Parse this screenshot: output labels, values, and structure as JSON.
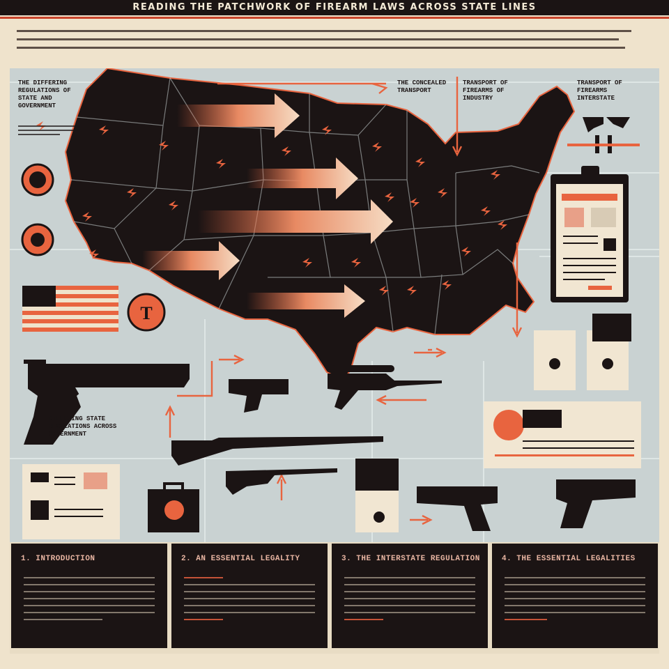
{
  "header": {
    "title": "READING THE PATCHWORK OF FIREARM LAWS ACROSS STATE LINES"
  },
  "labels": {
    "top_left": "THE DIFFERING REGULATIONS OF STATE AND GOVERNMENT",
    "top_center": "THE CONCEALED TRANSPORT",
    "top_center_right": "TRANSPORT OF FIREARMS OF INDUSTRY",
    "top_right": "TRANSPORT OF FIREARMS INTERSTATE",
    "mid_left": "DIFFERING STATE REGULATIONS ACROSS GOVERNMENT"
  },
  "columns": [
    {
      "heading": "1. INTRODUCTION"
    },
    {
      "heading": "2. AN ESSENTIAL LEGALITY"
    },
    {
      "heading": "3. THE INTERSTATE REGULATION"
    },
    {
      "heading": "4. THE ESSENTIAL LEGALITIES"
    }
  ],
  "colors": {
    "ink": "#1b1414",
    "accent": "#e8643f",
    "panel": "#c9d2d2",
    "paper": "#efe3cc"
  }
}
